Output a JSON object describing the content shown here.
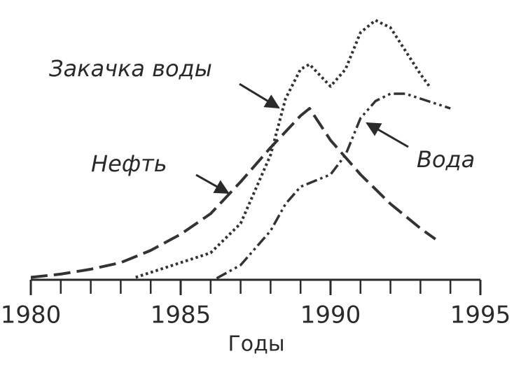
{
  "chart_data": {
    "type": "line",
    "xlabel": "Годы",
    "xlim": [
      1980,
      1995
    ],
    "xticks": [
      1980,
      1985,
      1990,
      1995
    ],
    "xminorticks": [
      1981,
      1982,
      1983,
      1984,
      1986,
      1987,
      1988,
      1989,
      1991,
      1992,
      1993,
      1994
    ],
    "ylim": [
      0,
      110
    ],
    "series": [
      {
        "name": "Нефть",
        "color": "#333333",
        "style": "dashed",
        "x": [
          1980,
          1981,
          1982,
          1983,
          1984,
          1985,
          1986,
          1987,
          1988,
          1989,
          1989.3,
          1990,
          1991,
          1992,
          1993,
          1993.5
        ],
        "values": [
          1,
          2.3,
          4.3,
          7,
          12,
          18.6,
          27,
          40,
          54,
          67,
          70,
          57,
          43,
          31,
          21,
          16.6
        ]
      },
      {
        "name": "Закачка воды",
        "color": "#333333",
        "style": "dotted",
        "x": [
          1983.5,
          1984,
          1985,
          1986,
          1987,
          1988,
          1988.5,
          1989,
          1989.3,
          1990,
          1990.5,
          1991,
          1991.5,
          1992,
          1993,
          1993.3
        ],
        "values": [
          1,
          3,
          7,
          11,
          23,
          51,
          74,
          86,
          88,
          79,
          86,
          101,
          106,
          103,
          84,
          79
        ]
      },
      {
        "name": "Вода",
        "color": "#333333",
        "style": "dashdotdot",
        "x": [
          1986.2,
          1987,
          1988,
          1988.5,
          1989,
          1990,
          1990.5,
          1991,
          1991.5,
          1992,
          1992.5,
          1993,
          1994
        ],
        "values": [
          0.6,
          6,
          20,
          31,
          38,
          43,
          51,
          66,
          73,
          76,
          76,
          74,
          70
        ]
      }
    ]
  }
}
